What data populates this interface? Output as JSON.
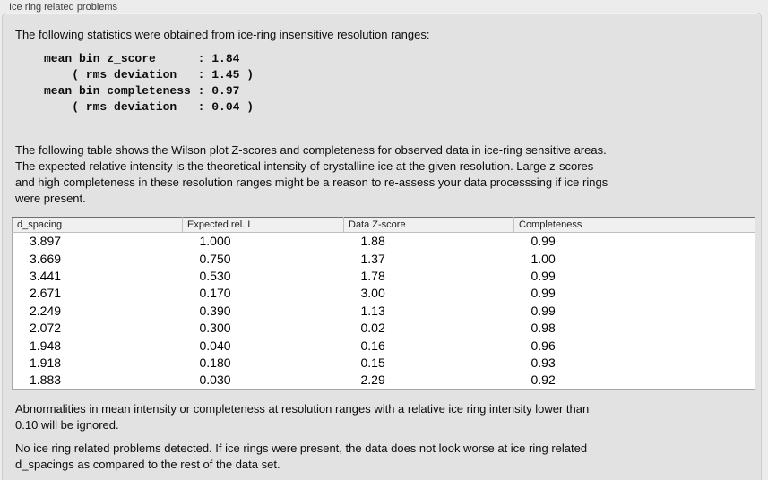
{
  "panel": {
    "title": "Ice ring related problems"
  },
  "intro": "The following statistics were obtained from ice-ring insensitive resolution ranges:",
  "stats_block": "mean bin z_score      : 1.84\n    ( rms deviation   : 1.45 )\nmean bin completeness : 0.97\n    ( rms deviation   : 0.04 )",
  "description": "The following table shows the Wilson plot Z-scores and completeness for observed data in ice-ring sensitive areas.\nThe expected relative intensity is the theoretical intensity of crystalline ice at the given resolution. Large z-scores\nand high completeness in these resolution ranges might be a reason to re-assess your data processsing if ice rings\nwere present.",
  "table": {
    "columns": [
      "d_spacing",
      "Expected rel. I",
      "Data Z-score",
      "Completeness",
      ""
    ],
    "rows": [
      [
        "3.897",
        "1.000",
        "1.88",
        "0.99",
        ""
      ],
      [
        "3.669",
        "0.750",
        "1.37",
        "1.00",
        ""
      ],
      [
        "3.441",
        "0.530",
        "1.78",
        "0.99",
        ""
      ],
      [
        "2.671",
        "0.170",
        "3.00",
        "0.99",
        ""
      ],
      [
        "2.249",
        "0.390",
        "1.13",
        "0.99",
        ""
      ],
      [
        "2.072",
        "0.300",
        "0.02",
        "0.98",
        ""
      ],
      [
        "1.948",
        "0.040",
        "0.16",
        "0.96",
        ""
      ],
      [
        "1.918",
        "0.180",
        "0.15",
        "0.93",
        ""
      ],
      [
        "1.883",
        "0.030",
        "2.29",
        "0.92",
        ""
      ]
    ]
  },
  "note_ignore": "Abnormalities in mean intensity or completeness at resolution ranges with a relative ice ring intensity lower than\n0.10 will be ignored.",
  "conclusion": "No ice ring related problems detected. If ice rings were present, the data does not look worse at ice ring related\nd_spacings as compared to the rest of the data set."
}
